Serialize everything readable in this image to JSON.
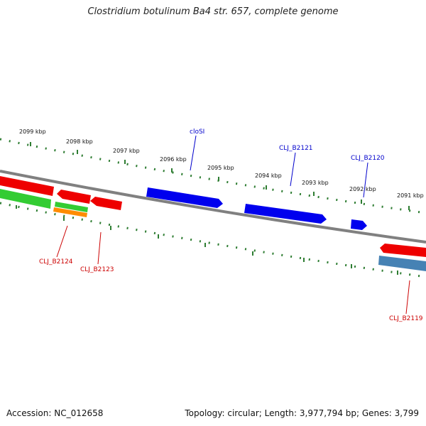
{
  "title": "Clostridium botulinum Ba4 str. 657, complete genome",
  "footer": {
    "accession": "Accession: NC_012658",
    "stats": "Topology: circular; Length: 3,977,794 bp; Genes: 3,799"
  },
  "colors": {
    "backbone": "#808080",
    "forward_gene": "#0000ee",
    "reverse_gene": "#ee0000",
    "green_gene": "#33cc33",
    "orange_gene": "#ff8c00",
    "steel_gene": "#4682b4",
    "tick_color": "#2e7d32",
    "forward_label": "#0000cc",
    "reverse_label": "#cc0000"
  },
  "kbp_labels": [
    "2099 kbp",
    "2098 kbp",
    "2097 kbp",
    "2096 kbp",
    "2095 kbp",
    "2094 kbp",
    "2093 kbp",
    "2092 kbp",
    "2091 kbp"
  ],
  "forward_gene_labels": [
    "cloSI",
    "CLJ_B2121",
    "CLJ_B2120"
  ],
  "reverse_gene_labels": [
    "CLJ_B2124",
    "CLJ_B2123",
    "CLJ_B2119"
  ]
}
